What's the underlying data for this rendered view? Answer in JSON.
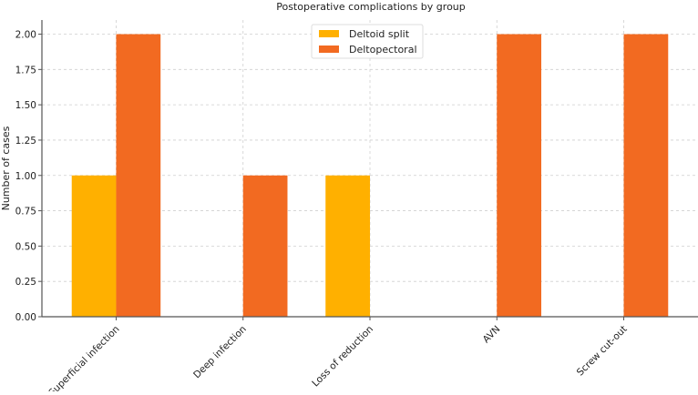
{
  "chart_data": {
    "type": "bar",
    "title": "Postoperative complications by group",
    "xlabel": "",
    "ylabel": "Number of cases",
    "categories": [
      "Superficial infection",
      "Deep infection",
      "Loss of reduction",
      "AVN",
      "Screw cut-out"
    ],
    "series": [
      {
        "name": "Deltoid split",
        "values": [
          1,
          0,
          1,
          0,
          0
        ],
        "color": "#FFB000"
      },
      {
        "name": "Deltopectoral",
        "values": [
          2,
          1,
          0,
          2,
          2
        ],
        "color": "#F26A21"
      }
    ],
    "ylim": [
      0,
      2.1
    ],
    "yticks": [
      "0.00",
      "0.25",
      "0.50",
      "0.75",
      "1.00",
      "1.25",
      "1.50",
      "1.75",
      "2.00"
    ],
    "grid": true,
    "legend_position": "top-center"
  }
}
